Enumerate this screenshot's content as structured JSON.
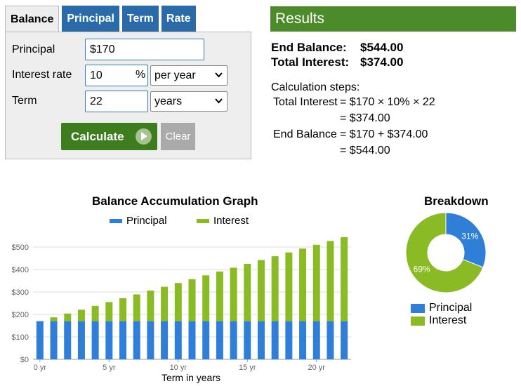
{
  "tabs": [
    "Balance",
    "Principal",
    "Term",
    "Rate"
  ],
  "form": {
    "principal_label": "Principal",
    "principal_value": "$170",
    "rate_label": "Interest rate",
    "rate_value": "10",
    "rate_unit": "%",
    "rate_period": "per year",
    "term_label": "Term",
    "term_value": "22",
    "term_unit": "years",
    "calculate_label": "Calculate",
    "clear_label": "Clear"
  },
  "results": {
    "header": "Results",
    "end_balance_label": "End Balance:",
    "end_balance_value": "$544.00",
    "total_interest_label": "Total Interest:",
    "total_interest_value": "$374.00",
    "steps_title": "Calculation steps:",
    "step1_label": "Total Interest",
    "step1_expr": "= $170 × 10% × 22",
    "step2_expr": "= $374.00",
    "step3_label": "End Balance",
    "step3_expr": "= $170 + $374.00",
    "step4_expr": "= $544.00"
  },
  "colors": {
    "principal": "#2f7ed8",
    "interest": "#8bbb24",
    "tab": "#2a6aa8",
    "results": "#4c8b29"
  },
  "chart_data": [
    {
      "type": "bar",
      "stacked": true,
      "title": "Balance Accumulation Graph",
      "xlabel": "Term in years",
      "ylabel": "",
      "x": [
        0,
        1,
        2,
        3,
        4,
        5,
        6,
        7,
        8,
        9,
        10,
        11,
        12,
        13,
        14,
        15,
        16,
        17,
        18,
        19,
        20,
        21,
        22
      ],
      "x_tick_labels": [
        "0 yr",
        "5 yr",
        "10 yr",
        "15 yr",
        "20 yr"
      ],
      "x_tick_values": [
        0,
        5,
        10,
        15,
        20
      ],
      "y_tick_labels": [
        "$0",
        "$100",
        "$200",
        "$300",
        "$400",
        "$500"
      ],
      "y_tick_values": [
        0,
        100,
        200,
        300,
        400,
        500
      ],
      "ylim": [
        0,
        550
      ],
      "grid": true,
      "legend": "top",
      "series": [
        {
          "name": "Principal",
          "values": [
            170,
            170,
            170,
            170,
            170,
            170,
            170,
            170,
            170,
            170,
            170,
            170,
            170,
            170,
            170,
            170,
            170,
            170,
            170,
            170,
            170,
            170,
            170
          ]
        },
        {
          "name": "Interest",
          "values": [
            0,
            17,
            34,
            51,
            68,
            85,
            102,
            119,
            136,
            153,
            170,
            187,
            204,
            221,
            238,
            255,
            272,
            289,
            306,
            323,
            340,
            357,
            374
          ]
        }
      ]
    },
    {
      "type": "pie",
      "title": "Breakdown",
      "labels": [
        "Principal",
        "Interest"
      ],
      "values": [
        31,
        69
      ],
      "value_labels": [
        "31%",
        "69%"
      ],
      "legend": "bottom"
    }
  ]
}
